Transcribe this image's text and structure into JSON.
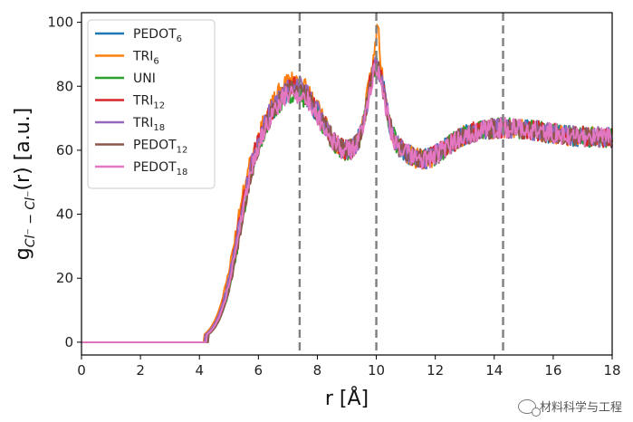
{
  "chart_data": {
    "type": "line",
    "title": "",
    "xlabel": "r [Å]",
    "ylabel_main": "g",
    "ylabel_sub": "Cl⁻ − Cl⁻",
    "ylabel_tail": "(r) [a.u.]",
    "xlim": [
      0,
      18
    ],
    "ylim": [
      -4,
      103
    ],
    "xticks": [
      0,
      2,
      4,
      6,
      8,
      10,
      12,
      14,
      16,
      18
    ],
    "yticks": [
      0,
      20,
      40,
      60,
      80,
      100
    ],
    "vlines": [
      7.4,
      10.0,
      14.3
    ],
    "grid": false,
    "legend_position": "top-left",
    "series": [
      {
        "name": "PEDOT",
        "sub": "6",
        "color": "#1f77b4",
        "seed": 11,
        "onset": 4.25,
        "p1": 81,
        "p2": 86,
        "p2spike": 0
      },
      {
        "name": "TRI",
        "sub": "6",
        "color": "#ff7f0e",
        "seed": 23,
        "onset": 4.15,
        "p1": 84,
        "p2": 88,
        "p2spike": 10
      },
      {
        "name": "UNI",
        "sub": "",
        "color": "#2ca02c",
        "seed": 37,
        "onset": 4.3,
        "p1": 80,
        "p2": 85,
        "p2spike": 0
      },
      {
        "name": "TRI",
        "sub": "12",
        "color": "#d62728",
        "seed": 41,
        "onset": 4.2,
        "p1": 82,
        "p2": 86,
        "p2spike": 0
      },
      {
        "name": "TRI",
        "sub": "18",
        "color": "#9467bd",
        "seed": 53,
        "onset": 4.2,
        "p1": 83,
        "p2": 85,
        "p2spike": 0
      },
      {
        "name": "PEDOT",
        "sub": "12",
        "color": "#8c564b",
        "seed": 67,
        "onset": 4.3,
        "p1": 81,
        "p2": 85,
        "p2spike": 0
      },
      {
        "name": "PEDOT",
        "sub": "18",
        "color": "#e377c2",
        "seed": 79,
        "onset": 4.25,
        "p1": 80,
        "p2": 84,
        "p2spike": 0
      }
    ]
  },
  "watermark": {
    "icon": "wechat-icon",
    "text": "材料科学与工程"
  }
}
